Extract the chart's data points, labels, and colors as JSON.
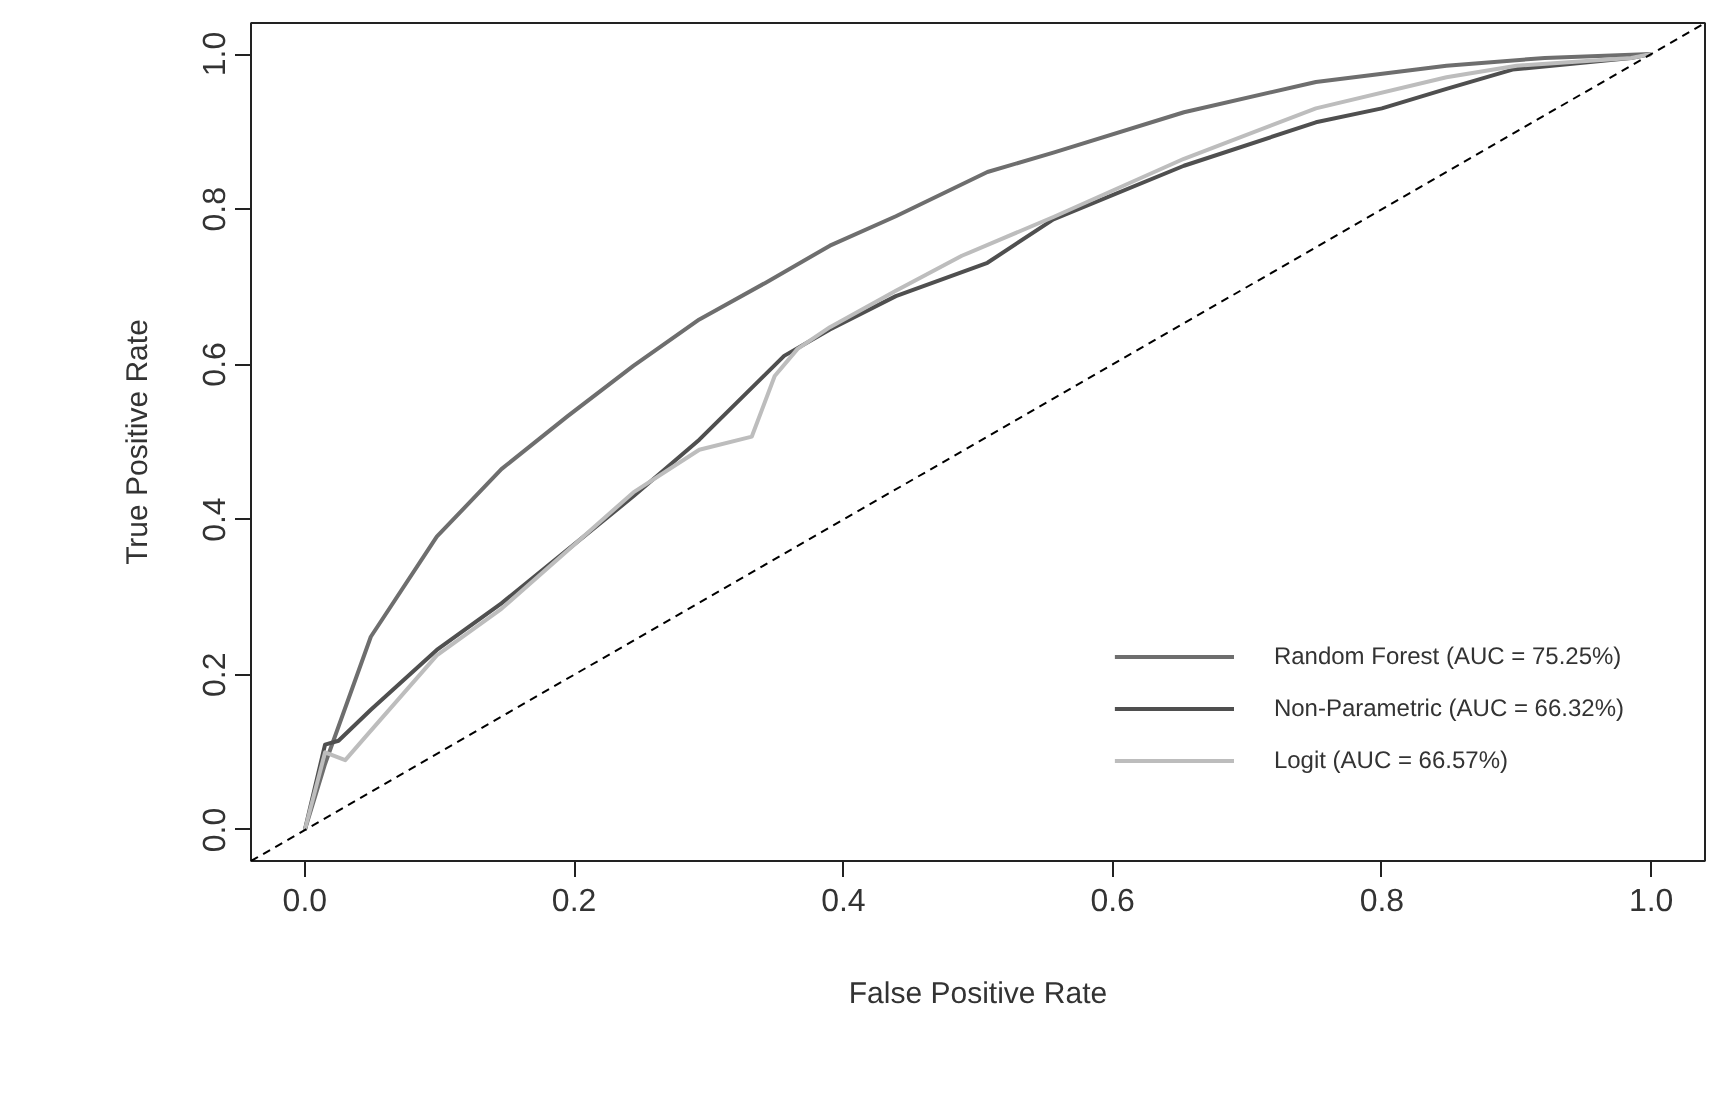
{
  "chart_data": {
    "type": "line",
    "xlabel": "False Positive Rate",
    "ylabel": "True Positive Rate",
    "xlim": [
      -0.04,
      1.04
    ],
    "ylim": [
      -0.04,
      1.04
    ],
    "xticks": [
      {
        "value": 0,
        "label": "0.0"
      },
      0.2,
      0.4,
      0.6,
      0.8,
      {
        "value": 1,
        "label": "1.0"
      }
    ],
    "yticks": [
      {
        "value": 0,
        "label": "0.0"
      },
      0.2,
      0.4,
      0.6,
      0.8,
      {
        "value": 1,
        "label": "1.0"
      }
    ],
    "grid": false,
    "legend": "bottom right",
    "line_style": "solid",
    "marker": "none",
    "series": [
      {
        "name": "Random Forest (AUC = 75.25%)",
        "color": "#6e6e6e",
        "x": [
          0,
          0.015,
          0.049,
          0.098,
          0.146,
          0.195,
          0.244,
          0.293,
          0.342,
          0.39,
          0.439,
          0.507,
          0.556,
          0.653,
          0.751,
          0.848,
          0.921,
          1
        ],
        "values": [
          0,
          0.085,
          0.249,
          0.378,
          0.465,
          0.533,
          0.598,
          0.658,
          0.705,
          0.753,
          0.791,
          0.848,
          0.873,
          0.925,
          0.964,
          0.985,
          0.995,
          1
        ]
      },
      {
        "name": "Non-Parametric (AUC = 66.32%)",
        "color": "#4f4f4f",
        "x": [
          0,
          0.015,
          0.025,
          0.049,
          0.098,
          0.146,
          0.195,
          0.244,
          0.293,
          0.356,
          0.39,
          0.439,
          0.507,
          0.556,
          0.653,
          0.751,
          0.8,
          0.848,
          0.897,
          0.985,
          1
        ],
        "values": [
          0,
          0.11,
          0.115,
          0.155,
          0.232,
          0.292,
          0.361,
          0.43,
          0.503,
          0.611,
          0.645,
          0.688,
          0.731,
          0.787,
          0.856,
          0.912,
          0.93,
          0.955,
          0.98,
          0.995,
          1
        ]
      },
      {
        "name": "Logit (AUC = 66.57%)",
        "color": "#bdbdbd",
        "x": [
          0,
          0.015,
          0.03,
          0.045,
          0.098,
          0.146,
          0.195,
          0.244,
          0.293,
          0.332,
          0.349,
          0.366,
          0.39,
          0.439,
          0.488,
          0.556,
          0.653,
          0.751,
          0.848,
          0.9,
          0.985,
          1
        ],
        "values": [
          0,
          0.1,
          0.09,
          0.12,
          0.225,
          0.285,
          0.36,
          0.435,
          0.49,
          0.507,
          0.585,
          0.62,
          0.648,
          0.695,
          0.74,
          0.79,
          0.865,
          0.93,
          0.97,
          0.985,
          0.995,
          1
        ]
      },
      {
        "color": "#000000",
        "line_style": "dashed",
        "x": [
          -0.04,
          1.04
        ],
        "values": [
          -0.04,
          1.04
        ]
      }
    ]
  }
}
